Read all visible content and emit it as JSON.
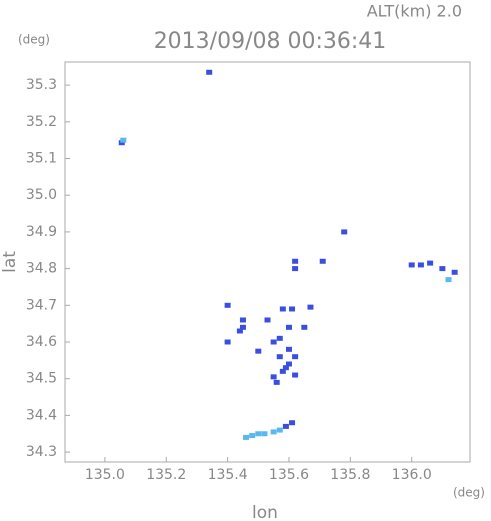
{
  "chart_data": {
    "type": "scatter",
    "header": "ALT(km) 2.0",
    "title": "2013/09/08 00:36:41",
    "x_label": "lon",
    "y_label": "lat",
    "x_unit": "(deg)",
    "y_unit": "(deg)",
    "xlim": [
      134.87,
      136.19
    ],
    "ylim": [
      34.273,
      35.363
    ],
    "xticks": [
      {
        "value": 135.0,
        "label": "135.0"
      },
      {
        "value": 135.2,
        "label": "135.2"
      },
      {
        "value": 135.4,
        "label": "135.4"
      },
      {
        "value": 135.6,
        "label": "135.6"
      },
      {
        "value": 135.8,
        "label": "135.8"
      },
      {
        "value": 136.0,
        "label": "136.0"
      }
    ],
    "yticks": [
      {
        "value": 34.3,
        "label": "34.3"
      },
      {
        "value": 34.4,
        "label": "34.4"
      },
      {
        "value": 34.5,
        "label": "34.5"
      },
      {
        "value": 34.6,
        "label": "34.6"
      },
      {
        "value": 34.7,
        "label": "34.7"
      },
      {
        "value": 34.8,
        "label": "34.8"
      },
      {
        "value": 34.9,
        "label": "34.9"
      },
      {
        "value": 35.0,
        "label": "35.0"
      },
      {
        "value": 35.1,
        "label": "35.1"
      },
      {
        "value": 35.2,
        "label": "35.2"
      },
      {
        "value": 35.3,
        "label": "35.3"
      }
    ],
    "series": [
      {
        "color": "#3a4fe0",
        "x": [
          135.34,
          135.055,
          135.78,
          135.62,
          135.62,
          135.71,
          136.0,
          136.03,
          136.06,
          136.1,
          136.14,
          135.4,
          135.58,
          135.61,
          135.67,
          135.45,
          135.45,
          135.44,
          135.53,
          135.6,
          135.65,
          135.57,
          135.55,
          135.6,
          135.62,
          135.57,
          135.6,
          135.58,
          135.62,
          135.59,
          135.56,
          135.55,
          135.5,
          135.61,
          135.59,
          135.4
        ],
        "values": [
          35.335,
          35.143,
          34.9,
          34.82,
          34.8,
          34.82,
          34.81,
          34.81,
          34.815,
          34.8,
          34.79,
          34.7,
          34.69,
          34.69,
          34.695,
          34.66,
          34.64,
          34.63,
          34.66,
          34.64,
          34.64,
          34.61,
          34.6,
          34.58,
          34.56,
          34.56,
          34.54,
          34.52,
          34.51,
          34.53,
          34.49,
          34.505,
          34.575,
          34.38,
          34.37,
          34.6
        ]
      },
      {
        "color": "#5ab8f0",
        "x": [
          135.06,
          136.12,
          135.46,
          135.48,
          135.5,
          135.52,
          135.55,
          135.57
        ],
        "values": [
          35.15,
          34.77,
          34.34,
          34.345,
          34.35,
          34.35,
          34.355,
          34.36
        ]
      }
    ]
  }
}
